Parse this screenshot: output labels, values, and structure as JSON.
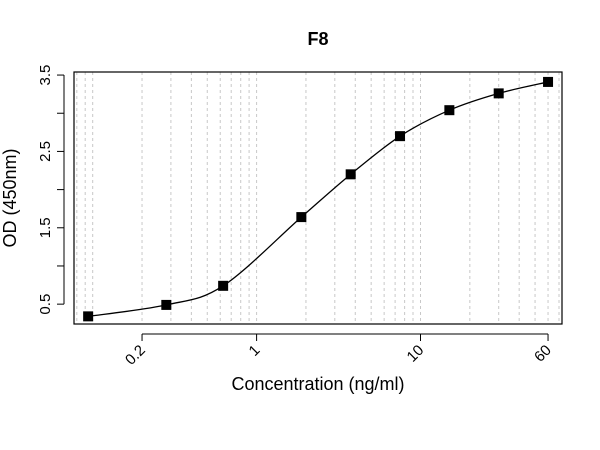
{
  "chart_data": {
    "type": "scatter",
    "title": "F8",
    "xlabel": "Concentration (ng/ml)",
    "ylabel": "OD (450nm)",
    "x_scale": "log",
    "xlim": [
      0.0769,
      73.0
    ],
    "ylim": [
      0.24,
      3.54
    ],
    "x_ticks": [
      0.2,
      1,
      10,
      60
    ],
    "x_tick_labels": [
      "0.2",
      "1",
      "10",
      "60"
    ],
    "y_ticks": [
      0.5,
      1,
      1.5,
      2,
      2.5,
      3,
      3.5
    ],
    "y_tick_labels": [
      "0.5",
      "",
      "1.5",
      "",
      "2.5",
      "",
      "3.5"
    ],
    "grid": "vertical dashed",
    "series": [
      {
        "x": [
          0.0938,
          0.2813,
          0.625,
          1.875,
          3.75,
          7.5,
          15,
          30,
          60
        ],
        "y": [
          0.34,
          0.49,
          0.74,
          1.64,
          2.2,
          2.7,
          3.04,
          3.26,
          3.41
        ],
        "marker": "square",
        "fit": "4PL"
      }
    ]
  }
}
